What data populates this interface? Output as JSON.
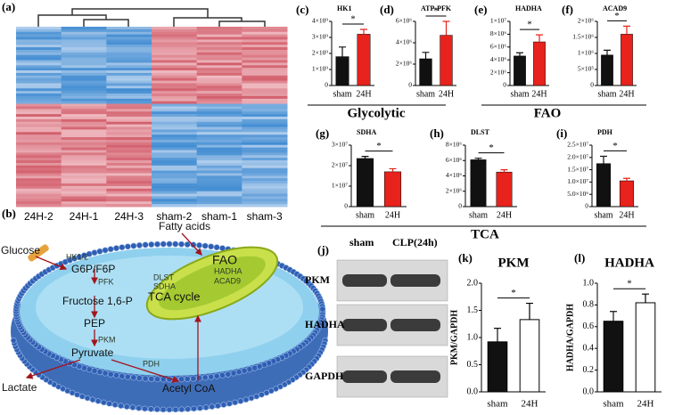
{
  "heatmap": {
    "panel": "(a)",
    "columns": [
      "24H-2",
      "24H-1",
      "24H-3",
      "sham-2",
      "sham-1",
      "sham-3"
    ]
  },
  "diagram": {
    "panel": "(b)",
    "labels": {
      "glucose": "Glucose",
      "hk": "HK1/2",
      "g6p": "G6P/F6P",
      "pfk": "PFK",
      "fructose": "Fructose 1,6-P",
      "pep": "PEP",
      "pkm": "PKM",
      "pyruvate": "Pyruvate",
      "pdh": "PDH",
      "acetyl": "Acetyl  CoA",
      "lactate": "Lactate",
      "fatty": "Fatty acids",
      "fao": "FAO",
      "hadha": "HADHA",
      "acad9": "ACAD9",
      "dlst": "DLST",
      "sdha": "SDHA",
      "tca": "TCA cycle"
    }
  },
  "blot": {
    "panel": "(j)",
    "lanes": [
      "sham",
      "CLP(24h)"
    ],
    "rows": [
      "PKM",
      "HADHA",
      "GAPDH"
    ]
  },
  "group_labels": [
    "Glycolytic",
    "FAO",
    "TCA"
  ],
  "chart_data": [
    {
      "type": "bar",
      "panel": "(c)",
      "title": "HK1",
      "categories": [
        "sham",
        "24H"
      ],
      "values": [
        1800000000.0,
        3200000000.0
      ],
      "errors": [
        600000000.0,
        300000000.0
      ],
      "colors": [
        "#111111",
        "#e8221c"
      ],
      "significance": "*",
      "ylim": [
        0,
        4000000000.0
      ],
      "yticks": [
        0,
        {
          "value": 1000000000.0,
          "label": "1×10⁹"
        },
        {
          "value": 2000000000.0,
          "label": "2×10⁹"
        },
        {
          "value": 3000000000.0,
          "label": "3×10⁹"
        },
        {
          "value": 4000000000.0,
          "label": "4×10⁹"
        }
      ]
    },
    {
      "type": "bar",
      "panel": "(d)",
      "title": "ATP-PFK",
      "categories": [
        "sham",
        "24H"
      ],
      "values": [
        2500000.0,
        4700000.0
      ],
      "errors": [
        600000.0,
        1300000.0
      ],
      "colors": [
        "#111111",
        "#e8221c"
      ],
      "significance": "*",
      "ylim": [
        0,
        6000000.0
      ],
      "yticks": [
        0,
        {
          "value": 2000000.0,
          "label": "2×10⁶"
        },
        {
          "value": 4000000.0,
          "label": "4×10⁶"
        },
        {
          "value": 6000000.0,
          "label": "6×10⁶"
        }
      ]
    },
    {
      "type": "bar",
      "panel": "(e)",
      "title": "HADHA",
      "categories": [
        "sham",
        "24H"
      ],
      "values": [
        4600000.0,
        6800000.0
      ],
      "errors": [
        500000.0,
        1100000.0
      ],
      "colors": [
        "#111111",
        "#e8221c"
      ],
      "significance": "*",
      "ylim": [
        0,
        10000000.0
      ],
      "yticks": [
        0,
        {
          "value": 2000000.0,
          "label": "2×10⁶"
        },
        {
          "value": 4000000.0,
          "label": "4×10⁶"
        },
        {
          "value": 6000000.0,
          "label": "6×10⁶"
        },
        {
          "value": 8000000.0,
          "label": "8×10⁶"
        },
        {
          "value": 10000000.0,
          "label": "1×10⁷"
        }
      ]
    },
    {
      "type": "bar",
      "panel": "(f)",
      "title": "ACAD9",
      "categories": [
        "sham",
        "24H"
      ],
      "values": [
        950000.0,
        1600000.0
      ],
      "errors": [
        150000.0,
        250000.0
      ],
      "colors": [
        "#111111",
        "#e8221c"
      ],
      "significance": "*",
      "ylim": [
        0,
        2000000.0
      ],
      "yticks": [
        0,
        {
          "value": 500000.0,
          "label": "5×10⁵"
        },
        {
          "value": 1000000.0,
          "label": "1×10⁶"
        },
        {
          "value": 1500000.0,
          "label": "1.5×10⁶"
        },
        {
          "value": 2000000.0,
          "label": "2×10⁶"
        }
      ]
    },
    {
      "type": "bar",
      "panel": "(g)",
      "title": "SDHA",
      "categories": [
        "sham",
        "24H"
      ],
      "values": [
        23500000.0,
        17000000.0
      ],
      "errors": [
        1000000.0,
        1500000.0
      ],
      "colors": [
        "#111111",
        "#e8221c"
      ],
      "significance": "*",
      "ylim": [
        0,
        30000000.0
      ],
      "yticks": [
        0,
        {
          "value": 10000000.0,
          "label": "1×10⁷"
        },
        {
          "value": 20000000.0,
          "label": "2×10⁷"
        },
        {
          "value": 30000000.0,
          "label": "3×10⁷"
        }
      ]
    },
    {
      "type": "bar",
      "panel": "(h)",
      "title": "DLST",
      "categories": [
        "sham",
        "24H"
      ],
      "values": [
        6100000.0,
        4500000.0
      ],
      "errors": [
        200000.0,
        300000.0
      ],
      "colors": [
        "#111111",
        "#e8221c"
      ],
      "significance": "*",
      "ylim": [
        0,
        8000000.0
      ],
      "yticks": [
        0,
        {
          "value": 2000000.0,
          "label": "2×10⁶"
        },
        {
          "value": 4000000.0,
          "label": "4×10⁶"
        },
        {
          "value": 6000000.0,
          "label": "6×10⁶"
        },
        {
          "value": 8000000.0,
          "label": "8×10⁶"
        }
      ]
    },
    {
      "type": "bar",
      "panel": "(i)",
      "title": "PDH",
      "categories": [
        "sham",
        "24H"
      ],
      "values": [
        17500000.0,
        10500000.0
      ],
      "errors": [
        3000000.0,
        1000000.0
      ],
      "colors": [
        "#111111",
        "#e8221c"
      ],
      "significance": "*",
      "ylim": [
        0,
        25000000.0
      ],
      "yticks": [
        0,
        {
          "value": 5000000.0,
          "label": "5.0×10⁶"
        },
        {
          "value": 10000000.0,
          "label": "1.0×10⁷"
        },
        {
          "value": 15000000.0,
          "label": "1.5×10⁷"
        },
        {
          "value": 20000000.0,
          "label": "2.0×10⁷"
        },
        {
          "value": 25000000.0,
          "label": "2.5×10⁷"
        }
      ]
    },
    {
      "type": "bar",
      "panel": "(k)",
      "title": "PKM",
      "ylabel": "PKM/GAPDH",
      "categories": [
        "sham",
        "24H"
      ],
      "values": [
        0.92,
        1.33
      ],
      "errors": [
        0.25,
        0.3
      ],
      "colors": [
        "#111111",
        "#ffffff"
      ],
      "significance": "*",
      "ylim": [
        0,
        2
      ],
      "yticks": [
        {
          "value": 0,
          "label": "0.0"
        },
        0.5,
        {
          "value": 1,
          "label": "1.0"
        },
        1.5,
        {
          "value": 2,
          "label": "2.0"
        }
      ]
    },
    {
      "type": "bar",
      "panel": "(l)",
      "title": "HADHA",
      "ylabel": "HADHA/GAPDH",
      "categories": [
        "sham",
        "24H"
      ],
      "values": [
        0.65,
        0.82
      ],
      "errors": [
        0.09,
        0.08
      ],
      "colors": [
        "#111111",
        "#ffffff"
      ],
      "significance": "*",
      "ylim": [
        0,
        1
      ],
      "yticks": [
        {
          "value": 0,
          "label": "0.0"
        },
        0.2,
        0.4,
        0.6,
        0.8,
        {
          "value": 1,
          "label": "1.0"
        }
      ]
    }
  ]
}
